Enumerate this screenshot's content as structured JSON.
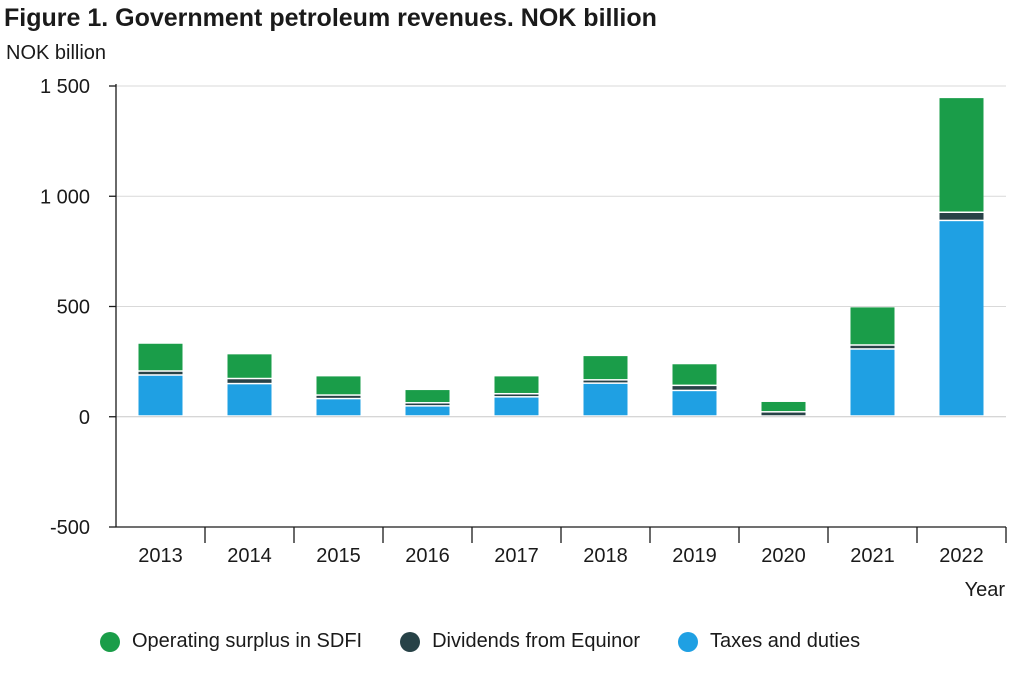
{
  "chart_data": {
    "type": "bar",
    "stacked": true,
    "title": "Figure 1. Government petroleum revenues. NOK billion",
    "ylabel": "NOK billion",
    "xlabel": "Year",
    "ylim": [
      -500,
      1500
    ],
    "yticks": [
      -500,
      0,
      500,
      1000,
      1500
    ],
    "ytick_labels": [
      "-500",
      "0",
      "500",
      "1 000",
      "1 500"
    ],
    "grid": true,
    "legend_position": "bottom",
    "categories": [
      "2013",
      "2014",
      "2015",
      "2016",
      "2017",
      "2018",
      "2019",
      "2020",
      "2021",
      "2022"
    ],
    "series": [
      {
        "name": "Taxes and duties",
        "color": "#1fa0e3",
        "values": [
          186,
          147,
          79,
          46,
          87,
          149,
          116,
          -5,
          304,
          887
        ]
      },
      {
        "name": "Dividends from Equinor",
        "color": "#274247",
        "values": [
          18,
          23,
          16,
          14,
          14,
          15,
          23,
          19,
          18,
          37
        ]
      },
      {
        "name": "Operating surplus in SDFI",
        "color": "#1a9d49",
        "values": [
          127,
          113,
          88,
          61,
          82,
          111,
          99,
          48,
          174,
          521
        ]
      }
    ]
  },
  "legend": {
    "items": [
      {
        "label": "Operating surplus in SDFI",
        "color": "#1a9d49"
      },
      {
        "label": "Dividends from Equinor",
        "color": "#274247"
      },
      {
        "label": "Taxes and duties",
        "color": "#1fa0e3"
      }
    ]
  }
}
